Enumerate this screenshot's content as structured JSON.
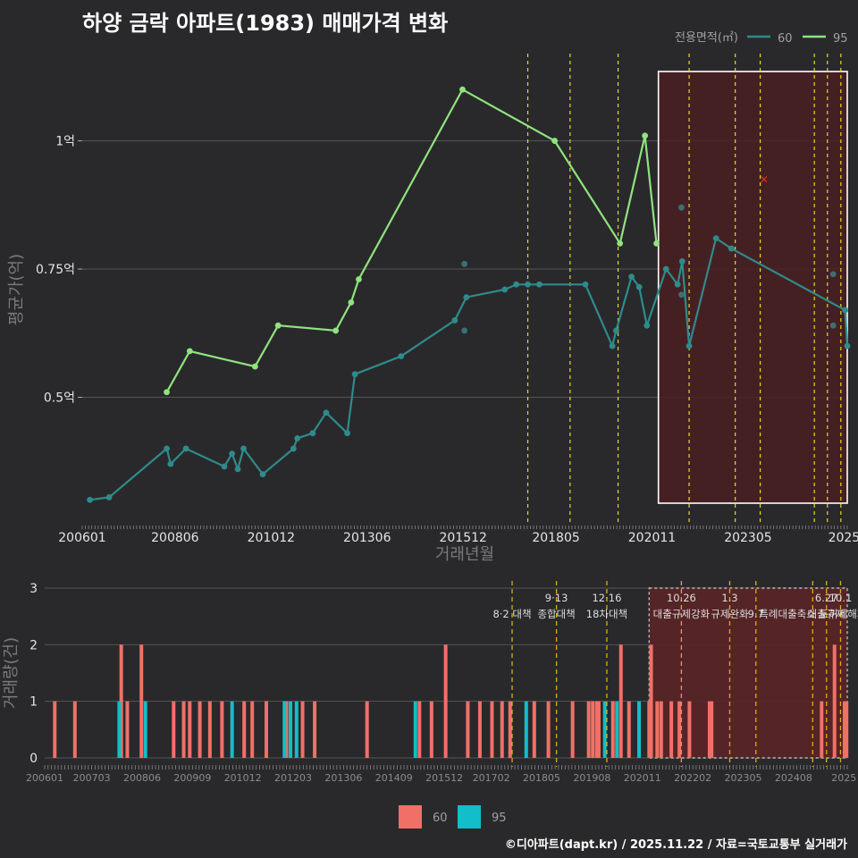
{
  "title": "하양 금락 아파트(1983) 매매가격 변화",
  "footer": "©디아파트(dapt.kr) / 2025.11.22 / 자료=국토교통부 실거래가",
  "colors": {
    "s60_line": "#2f8b8b",
    "s95_line": "#90e37f",
    "bar60": "#f07068",
    "bar95": "#12bec8",
    "policy": "#e6dc1e",
    "highlight": "#4a1f22"
  },
  "chart_data": [
    {
      "type": "line",
      "title": "하양 금락 아파트(1983) 매매가격 변화",
      "xlabel": "거래년월",
      "ylabel": "평균가(억)",
      "x_range": [
        2006.0,
        2025.917
      ],
      "y_range": [
        0.25,
        1.17
      ],
      "x_ticks": [
        {
          "label": "200601",
          "x": 2006.0
        },
        {
          "label": "200806",
          "x": 2008.417
        },
        {
          "label": "201012",
          "x": 2010.917
        },
        {
          "label": "201306",
          "x": 2013.417
        },
        {
          "label": "201512",
          "x": 2015.917
        },
        {
          "label": "201805",
          "x": 2018.333
        },
        {
          "label": "202011",
          "x": 2020.833
        },
        {
          "label": "202305",
          "x": 2023.333
        },
        {
          "label": "2025",
          "x": 2025.833
        }
      ],
      "y_ticks": [
        {
          "label": "0.5억",
          "value": 0.5
        },
        {
          "label": "0.75억",
          "value": 0.75
        },
        {
          "label": "1억",
          "value": 1.0
        }
      ],
      "legend_title": "전용면적(㎡)",
      "series": [
        {
          "name": "60",
          "points": [
            [
              2006.2,
              0.3
            ],
            [
              2006.7,
              0.305
            ],
            [
              2008.2,
              0.4
            ],
            [
              2008.3,
              0.37
            ],
            [
              2008.7,
              0.4
            ],
            [
              2009.7,
              0.365
            ],
            [
              2009.9,
              0.39
            ],
            [
              2010.05,
              0.36
            ],
            [
              2010.2,
              0.4
            ],
            [
              2010.7,
              0.35
            ],
            [
              2011.5,
              0.4
            ],
            [
              2011.6,
              0.42
            ],
            [
              2012.0,
              0.43
            ],
            [
              2012.35,
              0.47
            ],
            [
              2012.9,
              0.43
            ],
            [
              2013.1,
              0.545
            ],
            [
              2014.3,
              0.58
            ],
            [
              2015.7,
              0.65
            ],
            [
              2016.0,
              0.695
            ],
            [
              2017.0,
              0.71
            ],
            [
              2017.3,
              0.72
            ],
            [
              2017.6,
              0.72
            ],
            [
              2017.9,
              0.72
            ],
            [
              2019.1,
              0.72
            ],
            [
              2019.8,
              0.6
            ],
            [
              2019.9,
              0.63
            ],
            [
              2020.3,
              0.735
            ],
            [
              2020.5,
              0.715
            ],
            [
              2020.7,
              0.64
            ],
            [
              2021.2,
              0.75
            ],
            [
              2021.5,
              0.72
            ],
            [
              2021.62,
              0.765
            ],
            [
              2021.8,
              0.6
            ],
            [
              2022.5,
              0.81
            ],
            [
              2022.9,
              0.79
            ],
            [
              2025.86,
              0.67
            ],
            [
              2025.917,
              0.6
            ]
          ]
        },
        {
          "name": "95",
          "points": [
            [
              2008.2,
              0.51
            ],
            [
              2008.8,
              0.59
            ],
            [
              2010.5,
              0.56
            ],
            [
              2011.1,
              0.64
            ],
            [
              2012.6,
              0.63
            ],
            [
              2013.0,
              0.685
            ],
            [
              2013.2,
              0.73
            ],
            [
              2015.9,
              1.1
            ],
            [
              2018.3,
              1.0
            ],
            [
              2020.0,
              0.8
            ],
            [
              2020.65,
              1.01
            ],
            [
              2020.95,
              0.8
            ]
          ]
        }
      ],
      "outliers_60": [
        [
          2015.95,
          0.76
        ],
        [
          2015.95,
          0.63
        ],
        [
          2021.6,
          0.87
        ],
        [
          2021.6,
          0.7
        ],
        [
          2025.55,
          0.74
        ],
        [
          2025.55,
          0.64
        ]
      ],
      "outlier_marker": {
        "x": 2023.75,
        "y": 0.925
      },
      "policy_lines": [
        2017.6,
        2018.7,
        2019.95,
        2021.8,
        2023.0,
        2023.65,
        2025.06,
        2025.4,
        2025.75
      ],
      "highlight_range": [
        2021.0,
        2025.917
      ]
    },
    {
      "type": "bar",
      "ylabel": "거래량(건)",
      "y_range": [
        0,
        3
      ],
      "y_ticks": [
        0,
        1,
        2,
        3
      ],
      "x_ticks": [
        {
          "label": "200601",
          "x": 2006.0
        },
        {
          "label": "200703",
          "x": 2007.167
        },
        {
          "label": "200806",
          "x": 2008.417
        },
        {
          "label": "200909",
          "x": 2009.667
        },
        {
          "label": "201012",
          "x": 2010.917
        },
        {
          "label": "201203",
          "x": 2012.167
        },
        {
          "label": "201306",
          "x": 2013.417
        },
        {
          "label": "201409",
          "x": 2014.667
        },
        {
          "label": "201512",
          "x": 2015.917
        },
        {
          "label": "201702",
          "x": 2017.083
        },
        {
          "label": "201805",
          "x": 2018.333
        },
        {
          "label": "201908",
          "x": 2019.583
        },
        {
          "label": "202011",
          "x": 2020.833
        },
        {
          "label": "202202",
          "x": 2022.083
        },
        {
          "label": "202305",
          "x": 2023.333
        },
        {
          "label": "202408",
          "x": 2024.583
        },
        {
          "label": "2025",
          "x": 2025.833
        }
      ],
      "series": [
        {
          "name": "60",
          "points": [
            [
              2006.25,
              1
            ],
            [
              2006.75,
              1
            ],
            [
              2007.9,
              2
            ],
            [
              2008.05,
              1
            ],
            [
              2008.4,
              2
            ],
            [
              2009.2,
              1
            ],
            [
              2009.45,
              1
            ],
            [
              2009.6,
              1
            ],
            [
              2009.85,
              1
            ],
            [
              2010.1,
              1
            ],
            [
              2010.4,
              1
            ],
            [
              2010.95,
              1
            ],
            [
              2011.15,
              1
            ],
            [
              2011.5,
              1
            ],
            [
              2012.0,
              1
            ],
            [
              2012.4,
              1
            ],
            [
              2012.7,
              1
            ],
            [
              2014.0,
              1
            ],
            [
              2015.3,
              1
            ],
            [
              2015.6,
              1
            ],
            [
              2015.95,
              2
            ],
            [
              2016.5,
              1
            ],
            [
              2016.8,
              1
            ],
            [
              2017.1,
              1
            ],
            [
              2017.35,
              1
            ],
            [
              2017.55,
              1
            ],
            [
              2018.15,
              1
            ],
            [
              2018.5,
              1
            ],
            [
              2019.1,
              1
            ],
            [
              2019.5,
              1
            ],
            [
              2019.6,
              1
            ],
            [
              2019.7,
              1
            ],
            [
              2019.75,
              1
            ],
            [
              2020.1,
              1
            ],
            [
              2020.3,
              2
            ],
            [
              2020.5,
              1
            ],
            [
              2021.0,
              1
            ],
            [
              2021.05,
              2
            ],
            [
              2021.2,
              1
            ],
            [
              2021.3,
              1
            ],
            [
              2021.55,
              1
            ],
            [
              2021.75,
              1
            ],
            [
              2022.0,
              1
            ],
            [
              2022.5,
              1
            ],
            [
              2022.55,
              1
            ],
            [
              2025.28,
              1
            ],
            [
              2025.6,
              2
            ],
            [
              2025.85,
              1
            ],
            [
              2025.9,
              1
            ]
          ]
        },
        {
          "name": "95",
          "points": [
            [
              2007.85,
              1
            ],
            [
              2008.5,
              1
            ],
            [
              2010.65,
              1
            ],
            [
              2011.95,
              1
            ],
            [
              2012.1,
              1
            ],
            [
              2012.25,
              1
            ],
            [
              2015.2,
              1
            ],
            [
              2017.95,
              1
            ],
            [
              2019.9,
              1
            ],
            [
              2020.2,
              1
            ],
            [
              2020.75,
              1
            ]
          ]
        }
      ],
      "policy_lines": [
        2017.6,
        2018.7,
        2019.95,
        2021.8,
        2023.0,
        2023.65,
        2025.06,
        2025.4,
        2025.75
      ],
      "policy_annotations": [
        {
          "x": 2017.6,
          "row1": "",
          "row2": "8·2 대책"
        },
        {
          "x": 2018.7,
          "row1": "9·13",
          "row2": "종합대책"
        },
        {
          "x": 2019.95,
          "row1": "12·16",
          "row2": "18차대책"
        },
        {
          "x": 2021.8,
          "row1": "10.26",
          "row2": "대출규제강화"
        },
        {
          "x": 2023.0,
          "row1": "1.3",
          "row2": "규제완화"
        },
        {
          "x": 2023.65,
          "row1": "",
          "row2": "9.7"
        },
        {
          "x": 2025.06,
          "row1": "",
          "row2": "특례대출축소 토허제해제"
        },
        {
          "x": 2025.4,
          "row1": "6.27",
          "row2": "대출규제"
        },
        {
          "x": 2025.75,
          "row1": "10.1",
          "row2": ""
        }
      ],
      "highlight_range": [
        2021.0,
        2025.917
      ],
      "legend": [
        {
          "name": "60"
        },
        {
          "name": "95"
        }
      ]
    }
  ]
}
